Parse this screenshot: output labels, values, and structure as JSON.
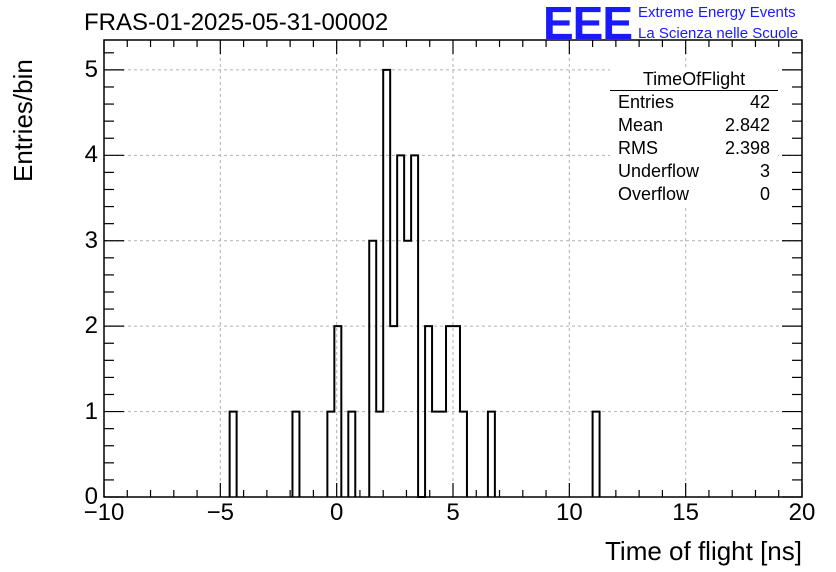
{
  "title": "FRAS-01-2025-05-31-00002",
  "branding": {
    "logo_text": "EEE",
    "line1": "Extreme Energy Events",
    "line2": "La Scienza nelle Scuole",
    "color": "#1a1aff"
  },
  "stats_box": {
    "title": "TimeOfFlight",
    "rows": [
      {
        "label": "Entries",
        "value": "42"
      },
      {
        "label": "Mean",
        "value": "2.842"
      },
      {
        "label": "RMS",
        "value": "2.398"
      },
      {
        "label": "Underflow",
        "value": "3"
      },
      {
        "label": "Overflow",
        "value": "0"
      }
    ]
  },
  "chart_data": {
    "type": "histogram",
    "xlabel": "Time of flight [ns]",
    "ylabel": "Entries/bin",
    "xlim": [
      -10,
      20
    ],
    "ylim": [
      0,
      5.35
    ],
    "bin_width": 0.3,
    "grid": true,
    "xticks": [
      -10,
      -5,
      0,
      5,
      10,
      15,
      20
    ],
    "xtick_labels": [
      "−10",
      "−5",
      "0",
      "5",
      "10",
      "15",
      "20"
    ],
    "yticks": [
      0,
      1,
      2,
      3,
      4,
      5
    ],
    "bins": [
      {
        "x": -4.6,
        "count": 1
      },
      {
        "x": -1.9,
        "count": 1
      },
      {
        "x": -0.4,
        "count": 1
      },
      {
        "x": -0.1,
        "count": 2
      },
      {
        "x": 0.5,
        "count": 1
      },
      {
        "x": 1.4,
        "count": 3
      },
      {
        "x": 1.7,
        "count": 1
      },
      {
        "x": 2.0,
        "count": 5
      },
      {
        "x": 2.3,
        "count": 2
      },
      {
        "x": 2.6,
        "count": 4
      },
      {
        "x": 2.9,
        "count": 3
      },
      {
        "x": 3.2,
        "count": 4
      },
      {
        "x": 3.5,
        "count": 0
      },
      {
        "x": 3.8,
        "count": 2
      },
      {
        "x": 4.1,
        "count": 1
      },
      {
        "x": 4.4,
        "count": 1
      },
      {
        "x": 4.7,
        "count": 2
      },
      {
        "x": 5.0,
        "count": 2
      },
      {
        "x": 5.3,
        "count": 1
      },
      {
        "x": 6.5,
        "count": 1
      },
      {
        "x": 11.0,
        "count": 1
      }
    ]
  }
}
